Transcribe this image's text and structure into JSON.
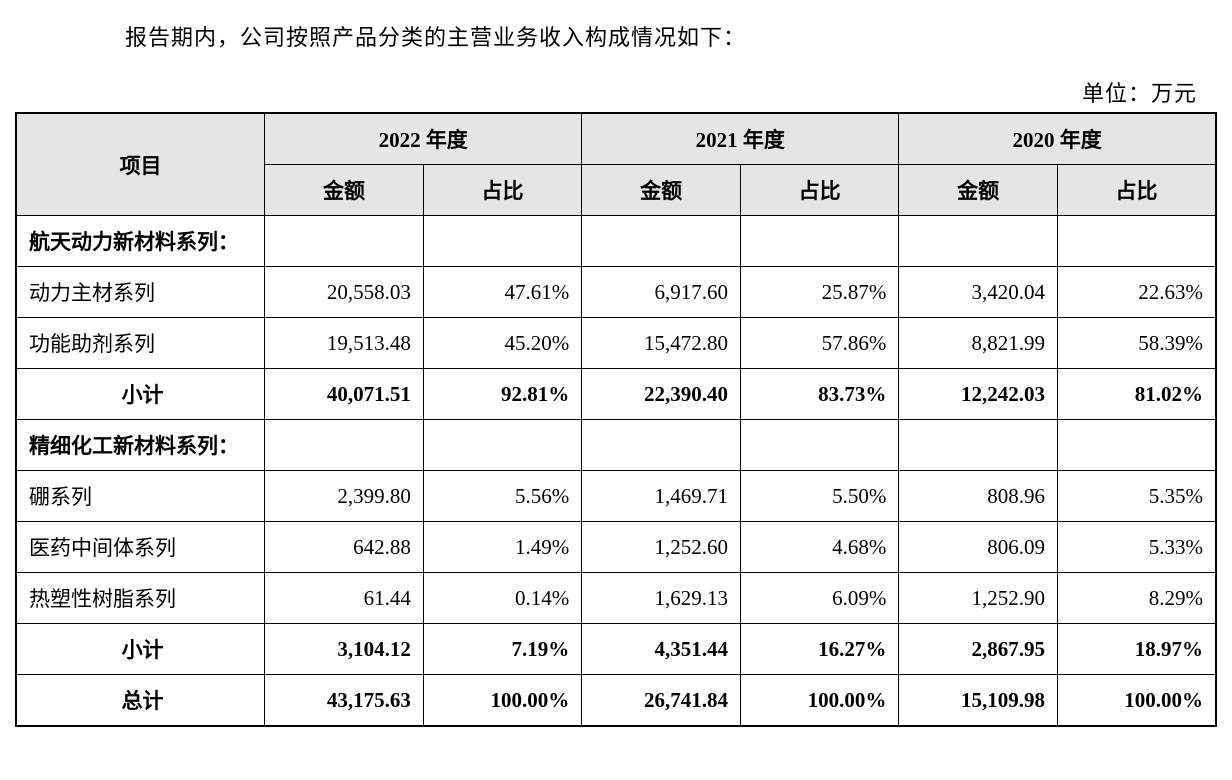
{
  "intro": "报告期内，公司按照产品分类的主营业务收入构成情况如下：",
  "unit": "单位：万元",
  "table": {
    "header": {
      "item": "项目",
      "years": [
        "2022 年度",
        "2021 年度",
        "2020 年度"
      ],
      "amount": "金额",
      "ratio": "占比"
    },
    "sections": [
      {
        "title": "航天动力新材料系列：",
        "rows": [
          {
            "item": "动力主材系列",
            "y2022": {
              "amount": "20,558.03",
              "ratio": "47.61%"
            },
            "y2021": {
              "amount": "6,917.60",
              "ratio": "25.87%"
            },
            "y2020": {
              "amount": "3,420.04",
              "ratio": "22.63%"
            }
          },
          {
            "item": "功能助剂系列",
            "y2022": {
              "amount": "19,513.48",
              "ratio": "45.20%"
            },
            "y2021": {
              "amount": "15,472.80",
              "ratio": "57.86%"
            },
            "y2020": {
              "amount": "8,821.99",
              "ratio": "58.39%"
            }
          }
        ],
        "subtotal": {
          "label": "小计",
          "y2022": {
            "amount": "40,071.51",
            "ratio": "92.81%"
          },
          "y2021": {
            "amount": "22,390.40",
            "ratio": "83.73%"
          },
          "y2020": {
            "amount": "12,242.03",
            "ratio": "81.02%"
          }
        }
      },
      {
        "title": "精细化工新材料系列：",
        "rows": [
          {
            "item": "硼系列",
            "y2022": {
              "amount": "2,399.80",
              "ratio": "5.56%"
            },
            "y2021": {
              "amount": "1,469.71",
              "ratio": "5.50%"
            },
            "y2020": {
              "amount": "808.96",
              "ratio": "5.35%"
            }
          },
          {
            "item": "医药中间体系列",
            "y2022": {
              "amount": "642.88",
              "ratio": "1.49%"
            },
            "y2021": {
              "amount": "1,252.60",
              "ratio": "4.68%"
            },
            "y2020": {
              "amount": "806.09",
              "ratio": "5.33%"
            }
          },
          {
            "item": "热塑性树脂系列",
            "y2022": {
              "amount": "61.44",
              "ratio": "0.14%"
            },
            "y2021": {
              "amount": "1,629.13",
              "ratio": "6.09%"
            },
            "y2020": {
              "amount": "1,252.90",
              "ratio": "8.29%"
            }
          }
        ],
        "subtotal": {
          "label": "小计",
          "y2022": {
            "amount": "3,104.12",
            "ratio": "7.19%"
          },
          "y2021": {
            "amount": "4,351.44",
            "ratio": "16.27%"
          },
          "y2020": {
            "amount": "2,867.95",
            "ratio": "18.97%"
          }
        }
      }
    ],
    "total": {
      "label": "总计",
      "y2022": {
        "amount": "43,175.63",
        "ratio": "100.00%"
      },
      "y2021": {
        "amount": "26,741.84",
        "ratio": "100.00%"
      },
      "y2020": {
        "amount": "15,109.98",
        "ratio": "100.00%"
      }
    }
  },
  "styling": {
    "font_family": "SimSun, 宋体, serif",
    "body_fontsize": 22,
    "table_fontsize": 21,
    "header_bg": "#e5e5e5",
    "border_color": "#000000",
    "text_color": "#000000",
    "background_color": "#ffffff",
    "outer_border_width": 2,
    "inner_border_width": 1
  }
}
